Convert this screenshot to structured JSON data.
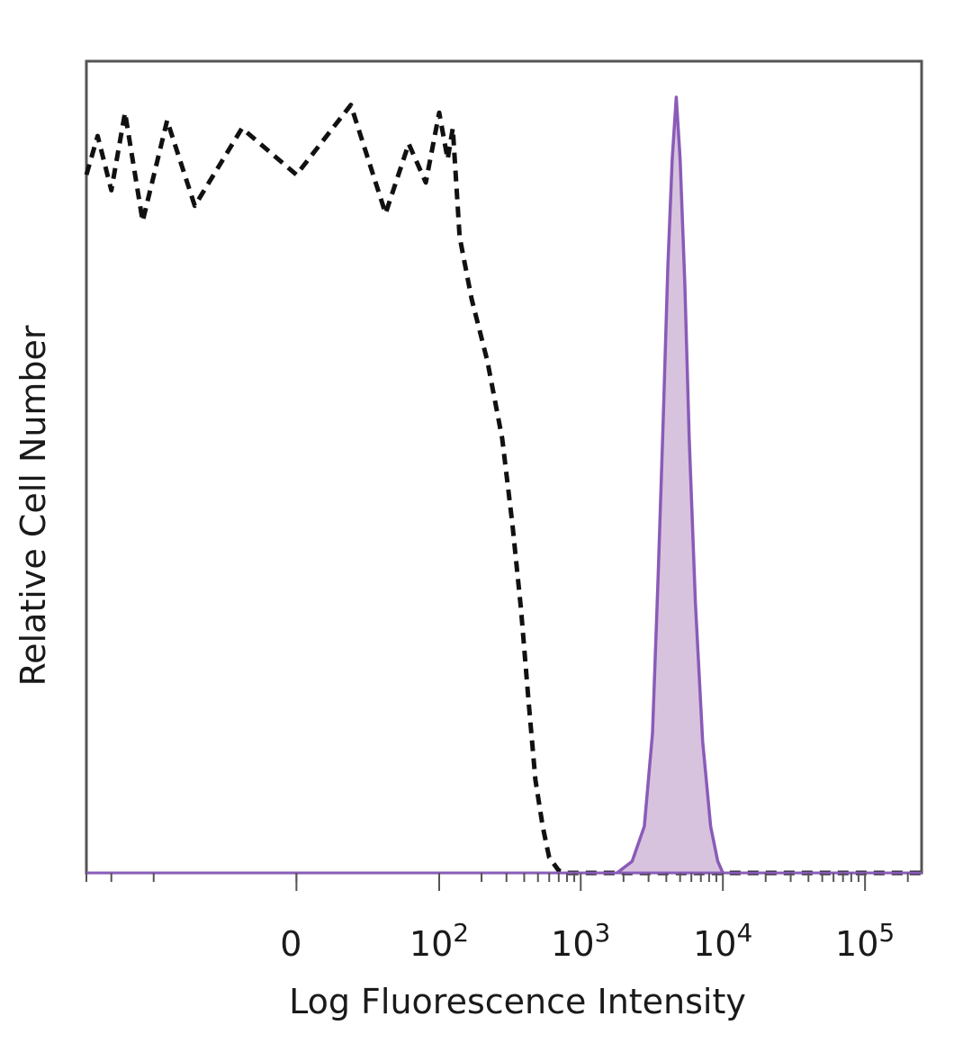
{
  "chart_data": {
    "type": "area",
    "xlabel": "Log Fluorescence Intensity",
    "ylabel": "Relative Cell Number",
    "x_scale": "biexponential",
    "x_ticks": [
      {
        "value": 0,
        "base": "0",
        "exp": ""
      },
      {
        "value": 100,
        "base": "10",
        "exp": "2"
      },
      {
        "value": 1000,
        "base": "10",
        "exp": "3"
      },
      {
        "value": 10000,
        "base": "10",
        "exp": "4"
      },
      {
        "value": 100000,
        "base": "10",
        "exp": "5"
      }
    ],
    "xlim": [
      -300,
      250000
    ],
    "ylim": [
      0,
      100
    ],
    "grid": false,
    "series": [
      {
        "role": "control",
        "style": "dashed",
        "color": "#111111",
        "points": [
          [
            -300,
            90
          ],
          [
            -250,
            95
          ],
          [
            -200,
            88
          ],
          [
            -160,
            98
          ],
          [
            -120,
            84
          ],
          [
            -80,
            97
          ],
          [
            -50,
            86
          ],
          [
            -20,
            96
          ],
          [
            0,
            90
          ],
          [
            20,
            99
          ],
          [
            40,
            85
          ],
          [
            60,
            94
          ],
          [
            80,
            89
          ],
          [
            100,
            98
          ],
          [
            115,
            92
          ],
          [
            125,
            96
          ],
          [
            140,
            82
          ],
          [
            170,
            74
          ],
          [
            220,
            66
          ],
          [
            280,
            56
          ],
          [
            330,
            45
          ],
          [
            380,
            34
          ],
          [
            430,
            22
          ],
          [
            480,
            12
          ],
          [
            540,
            6
          ],
          [
            600,
            2
          ],
          [
            700,
            0.3
          ],
          [
            800,
            0
          ],
          [
            2000,
            0
          ],
          [
            10000,
            0
          ],
          [
            100000,
            0
          ],
          [
            250000,
            0
          ]
        ]
      },
      {
        "role": "stained",
        "style": "filled",
        "color": "#8a5bb8",
        "fill": "#d8c3de",
        "points": [
          [
            1800,
            0
          ],
          [
            2300,
            1.5
          ],
          [
            2800,
            6
          ],
          [
            3200,
            18
          ],
          [
            3500,
            38
          ],
          [
            3800,
            58
          ],
          [
            4100,
            78
          ],
          [
            4400,
            92
          ],
          [
            4700,
            100
          ],
          [
            5000,
            92
          ],
          [
            5400,
            76
          ],
          [
            5800,
            56
          ],
          [
            6400,
            35
          ],
          [
            7200,
            17
          ],
          [
            8200,
            6
          ],
          [
            9200,
            1.5
          ],
          [
            10000,
            0
          ]
        ]
      }
    ]
  }
}
